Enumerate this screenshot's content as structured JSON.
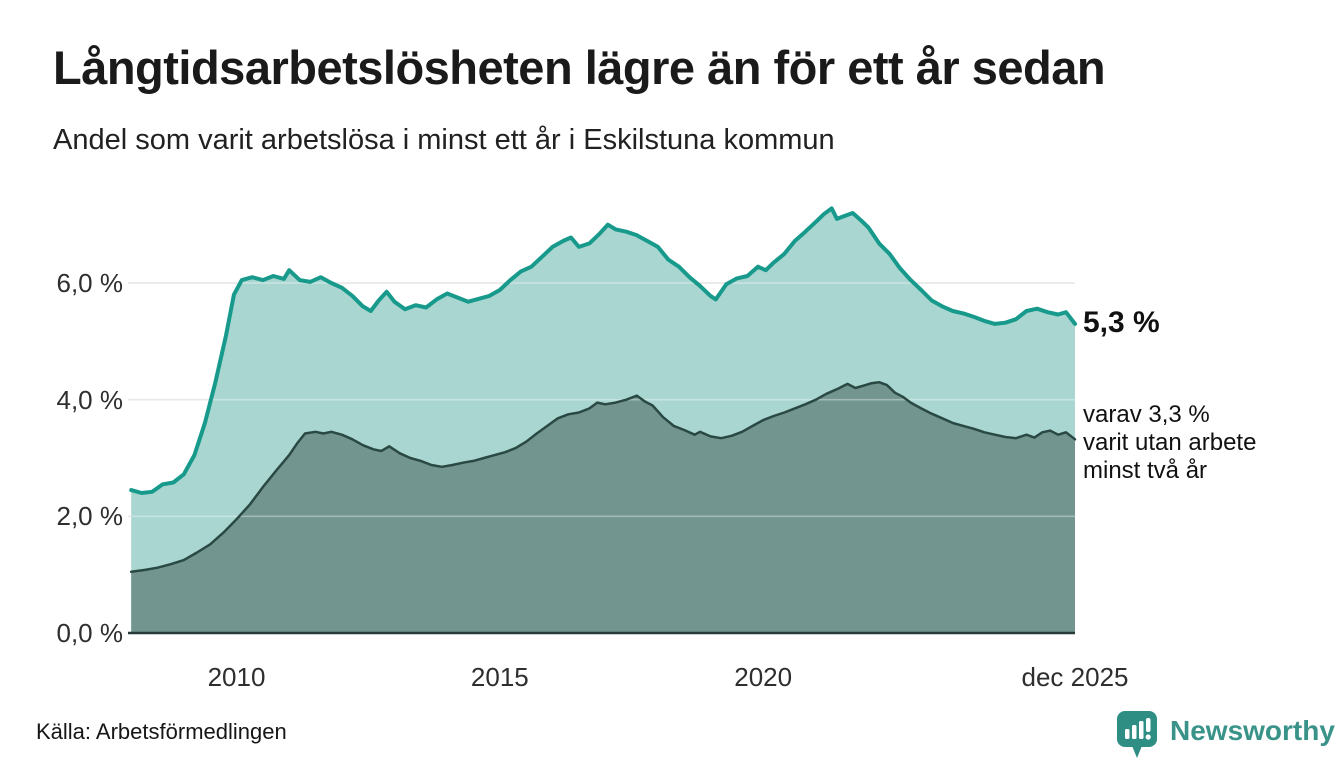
{
  "header": {
    "title": "Långtidsarbetslösheten lägre än för ett år sedan",
    "subtitle": "Andel som varit arbetslösa i minst ett år i Eskilstuna kommun"
  },
  "chart_data": {
    "type": "area",
    "title": "Långtidsarbetslösheten lägre än för ett år sedan",
    "subtitle": "Andel som varit arbetslösa i minst ett år i Eskilstuna kommun",
    "unit": "%",
    "x_axis": {
      "range": [
        2007.94,
        2025.92
      ],
      "ticks": [
        {
          "year": 2010,
          "label": "2010"
        },
        {
          "year": 2015,
          "label": "2015"
        },
        {
          "year": 2020,
          "label": "2020"
        },
        {
          "year": 2025.92,
          "label": "dec 2025"
        }
      ]
    },
    "y_axis": {
      "range": [
        0,
        7.45
      ],
      "gridlines": [
        2,
        4,
        6
      ],
      "ticks": [
        {
          "value": 0,
          "label": "0,0 %"
        },
        {
          "value": 2,
          "label": "2,0 %"
        },
        {
          "value": 4,
          "label": "4,0 %"
        },
        {
          "value": 6,
          "label": "6,0 %"
        }
      ]
    },
    "annotations": {
      "series1_end": "5,3 %",
      "series2_end_lines": [
        "varav 3,3 %",
        "varit utan arbete",
        "minst två år"
      ]
    },
    "series": [
      {
        "id": "unemployed-min-one-year",
        "line_color": "#179a8b",
        "fill_color": "#a9d6d0",
        "line_width": 4,
        "end_value": 5.3,
        "points": [
          [
            2008.0,
            2.45
          ],
          [
            2008.2,
            2.4
          ],
          [
            2008.4,
            2.42
          ],
          [
            2008.6,
            2.55
          ],
          [
            2008.8,
            2.58
          ],
          [
            2009.0,
            2.72
          ],
          [
            2009.2,
            3.05
          ],
          [
            2009.4,
            3.6
          ],
          [
            2009.6,
            4.3
          ],
          [
            2009.8,
            5.1
          ],
          [
            2009.95,
            5.8
          ],
          [
            2010.1,
            6.05
          ],
          [
            2010.3,
            6.1
          ],
          [
            2010.5,
            6.05
          ],
          [
            2010.7,
            6.12
          ],
          [
            2010.9,
            6.07
          ],
          [
            2011.0,
            6.22
          ],
          [
            2011.2,
            6.05
          ],
          [
            2011.4,
            6.02
          ],
          [
            2011.6,
            6.1
          ],
          [
            2011.8,
            6.0
          ],
          [
            2012.0,
            5.92
          ],
          [
            2012.2,
            5.78
          ],
          [
            2012.4,
            5.6
          ],
          [
            2012.55,
            5.52
          ],
          [
            2012.7,
            5.7
          ],
          [
            2012.85,
            5.85
          ],
          [
            2013.0,
            5.68
          ],
          [
            2013.2,
            5.55
          ],
          [
            2013.4,
            5.62
          ],
          [
            2013.6,
            5.58
          ],
          [
            2013.8,
            5.72
          ],
          [
            2014.0,
            5.82
          ],
          [
            2014.2,
            5.75
          ],
          [
            2014.4,
            5.68
          ],
          [
            2014.6,
            5.73
          ],
          [
            2014.8,
            5.78
          ],
          [
            2015.0,
            5.88
          ],
          [
            2015.2,
            6.05
          ],
          [
            2015.4,
            6.2
          ],
          [
            2015.6,
            6.28
          ],
          [
            2015.8,
            6.45
          ],
          [
            2016.0,
            6.62
          ],
          [
            2016.2,
            6.72
          ],
          [
            2016.35,
            6.78
          ],
          [
            2016.5,
            6.62
          ],
          [
            2016.7,
            6.68
          ],
          [
            2016.9,
            6.85
          ],
          [
            2017.05,
            7.0
          ],
          [
            2017.2,
            6.92
          ],
          [
            2017.4,
            6.88
          ],
          [
            2017.6,
            6.82
          ],
          [
            2017.8,
            6.72
          ],
          [
            2018.0,
            6.62
          ],
          [
            2018.2,
            6.4
          ],
          [
            2018.4,
            6.28
          ],
          [
            2018.6,
            6.1
          ],
          [
            2018.8,
            5.95
          ],
          [
            2019.0,
            5.78
          ],
          [
            2019.1,
            5.72
          ],
          [
            2019.3,
            5.98
          ],
          [
            2019.5,
            6.08
          ],
          [
            2019.7,
            6.12
          ],
          [
            2019.9,
            6.28
          ],
          [
            2020.05,
            6.22
          ],
          [
            2020.2,
            6.35
          ],
          [
            2020.4,
            6.5
          ],
          [
            2020.6,
            6.72
          ],
          [
            2020.8,
            6.88
          ],
          [
            2021.0,
            7.05
          ],
          [
            2021.15,
            7.18
          ],
          [
            2021.3,
            7.28
          ],
          [
            2021.4,
            7.1
          ],
          [
            2021.55,
            7.15
          ],
          [
            2021.7,
            7.2
          ],
          [
            2021.85,
            7.08
          ],
          [
            2022.0,
            6.95
          ],
          [
            2022.2,
            6.68
          ],
          [
            2022.4,
            6.5
          ],
          [
            2022.6,
            6.25
          ],
          [
            2022.8,
            6.05
          ],
          [
            2023.0,
            5.88
          ],
          [
            2023.2,
            5.7
          ],
          [
            2023.4,
            5.6
          ],
          [
            2023.6,
            5.52
          ],
          [
            2023.8,
            5.48
          ],
          [
            2024.0,
            5.42
          ],
          [
            2024.2,
            5.35
          ],
          [
            2024.4,
            5.3
          ],
          [
            2024.6,
            5.32
          ],
          [
            2024.8,
            5.38
          ],
          [
            2025.0,
            5.52
          ],
          [
            2025.2,
            5.56
          ],
          [
            2025.4,
            5.5
          ],
          [
            2025.6,
            5.46
          ],
          [
            2025.75,
            5.5
          ],
          [
            2025.92,
            5.3
          ]
        ]
      },
      {
        "id": "unemployed-min-two-years",
        "line_color": "#2b4944",
        "fill_color": "#72968f",
        "line_width": 2.5,
        "end_value": 3.3,
        "points": [
          [
            2008.0,
            1.05
          ],
          [
            2008.25,
            1.08
          ],
          [
            2008.5,
            1.12
          ],
          [
            2008.75,
            1.18
          ],
          [
            2009.0,
            1.25
          ],
          [
            2009.25,
            1.38
          ],
          [
            2009.5,
            1.52
          ],
          [
            2009.75,
            1.72
          ],
          [
            2010.0,
            1.95
          ],
          [
            2010.25,
            2.2
          ],
          [
            2010.5,
            2.5
          ],
          [
            2010.75,
            2.78
          ],
          [
            2011.0,
            3.05
          ],
          [
            2011.15,
            3.25
          ],
          [
            2011.3,
            3.42
          ],
          [
            2011.5,
            3.45
          ],
          [
            2011.65,
            3.42
          ],
          [
            2011.8,
            3.45
          ],
          [
            2012.0,
            3.4
          ],
          [
            2012.2,
            3.32
          ],
          [
            2012.4,
            3.22
          ],
          [
            2012.6,
            3.15
          ],
          [
            2012.75,
            3.12
          ],
          [
            2012.9,
            3.2
          ],
          [
            2013.1,
            3.08
          ],
          [
            2013.3,
            3.0
          ],
          [
            2013.5,
            2.95
          ],
          [
            2013.7,
            2.88
          ],
          [
            2013.9,
            2.85
          ],
          [
            2014.1,
            2.88
          ],
          [
            2014.3,
            2.92
          ],
          [
            2014.5,
            2.95
          ],
          [
            2014.7,
            3.0
          ],
          [
            2014.9,
            3.05
          ],
          [
            2015.1,
            3.1
          ],
          [
            2015.3,
            3.17
          ],
          [
            2015.5,
            3.28
          ],
          [
            2015.7,
            3.42
          ],
          [
            2015.9,
            3.55
          ],
          [
            2016.1,
            3.68
          ],
          [
            2016.3,
            3.75
          ],
          [
            2016.5,
            3.78
          ],
          [
            2016.7,
            3.85
          ],
          [
            2016.85,
            3.95
          ],
          [
            2017.0,
            3.92
          ],
          [
            2017.2,
            3.95
          ],
          [
            2017.4,
            4.0
          ],
          [
            2017.6,
            4.07
          ],
          [
            2017.75,
            3.97
          ],
          [
            2017.9,
            3.9
          ],
          [
            2018.1,
            3.7
          ],
          [
            2018.3,
            3.55
          ],
          [
            2018.5,
            3.48
          ],
          [
            2018.7,
            3.4
          ],
          [
            2018.8,
            3.45
          ],
          [
            2019.0,
            3.37
          ],
          [
            2019.2,
            3.34
          ],
          [
            2019.4,
            3.38
          ],
          [
            2019.6,
            3.45
          ],
          [
            2019.8,
            3.55
          ],
          [
            2020.0,
            3.65
          ],
          [
            2020.2,
            3.72
          ],
          [
            2020.4,
            3.78
          ],
          [
            2020.6,
            3.85
          ],
          [
            2020.8,
            3.92
          ],
          [
            2021.0,
            4.0
          ],
          [
            2021.2,
            4.1
          ],
          [
            2021.4,
            4.18
          ],
          [
            2021.6,
            4.27
          ],
          [
            2021.75,
            4.2
          ],
          [
            2021.9,
            4.24
          ],
          [
            2022.05,
            4.28
          ],
          [
            2022.2,
            4.3
          ],
          [
            2022.35,
            4.25
          ],
          [
            2022.5,
            4.12
          ],
          [
            2022.65,
            4.05
          ],
          [
            2022.8,
            3.95
          ],
          [
            2023.0,
            3.85
          ],
          [
            2023.2,
            3.76
          ],
          [
            2023.4,
            3.68
          ],
          [
            2023.6,
            3.6
          ],
          [
            2023.8,
            3.55
          ],
          [
            2024.0,
            3.5
          ],
          [
            2024.2,
            3.44
          ],
          [
            2024.4,
            3.4
          ],
          [
            2024.6,
            3.36
          ],
          [
            2024.8,
            3.34
          ],
          [
            2025.0,
            3.4
          ],
          [
            2025.15,
            3.35
          ],
          [
            2025.3,
            3.44
          ],
          [
            2025.45,
            3.47
          ],
          [
            2025.6,
            3.4
          ],
          [
            2025.75,
            3.44
          ],
          [
            2025.92,
            3.32
          ]
        ]
      }
    ],
    "colors": {
      "grid": "#dcdcdc",
      "grid_overlay": "rgba(255,255,255,0.35)",
      "baseline": "#263a37",
      "brand": "#2e8e84"
    },
    "legend_position": "none",
    "grid": true
  },
  "footer": {
    "source": "Källa: Arbetsförmedlingen",
    "brand_name": "Newsworthy"
  }
}
